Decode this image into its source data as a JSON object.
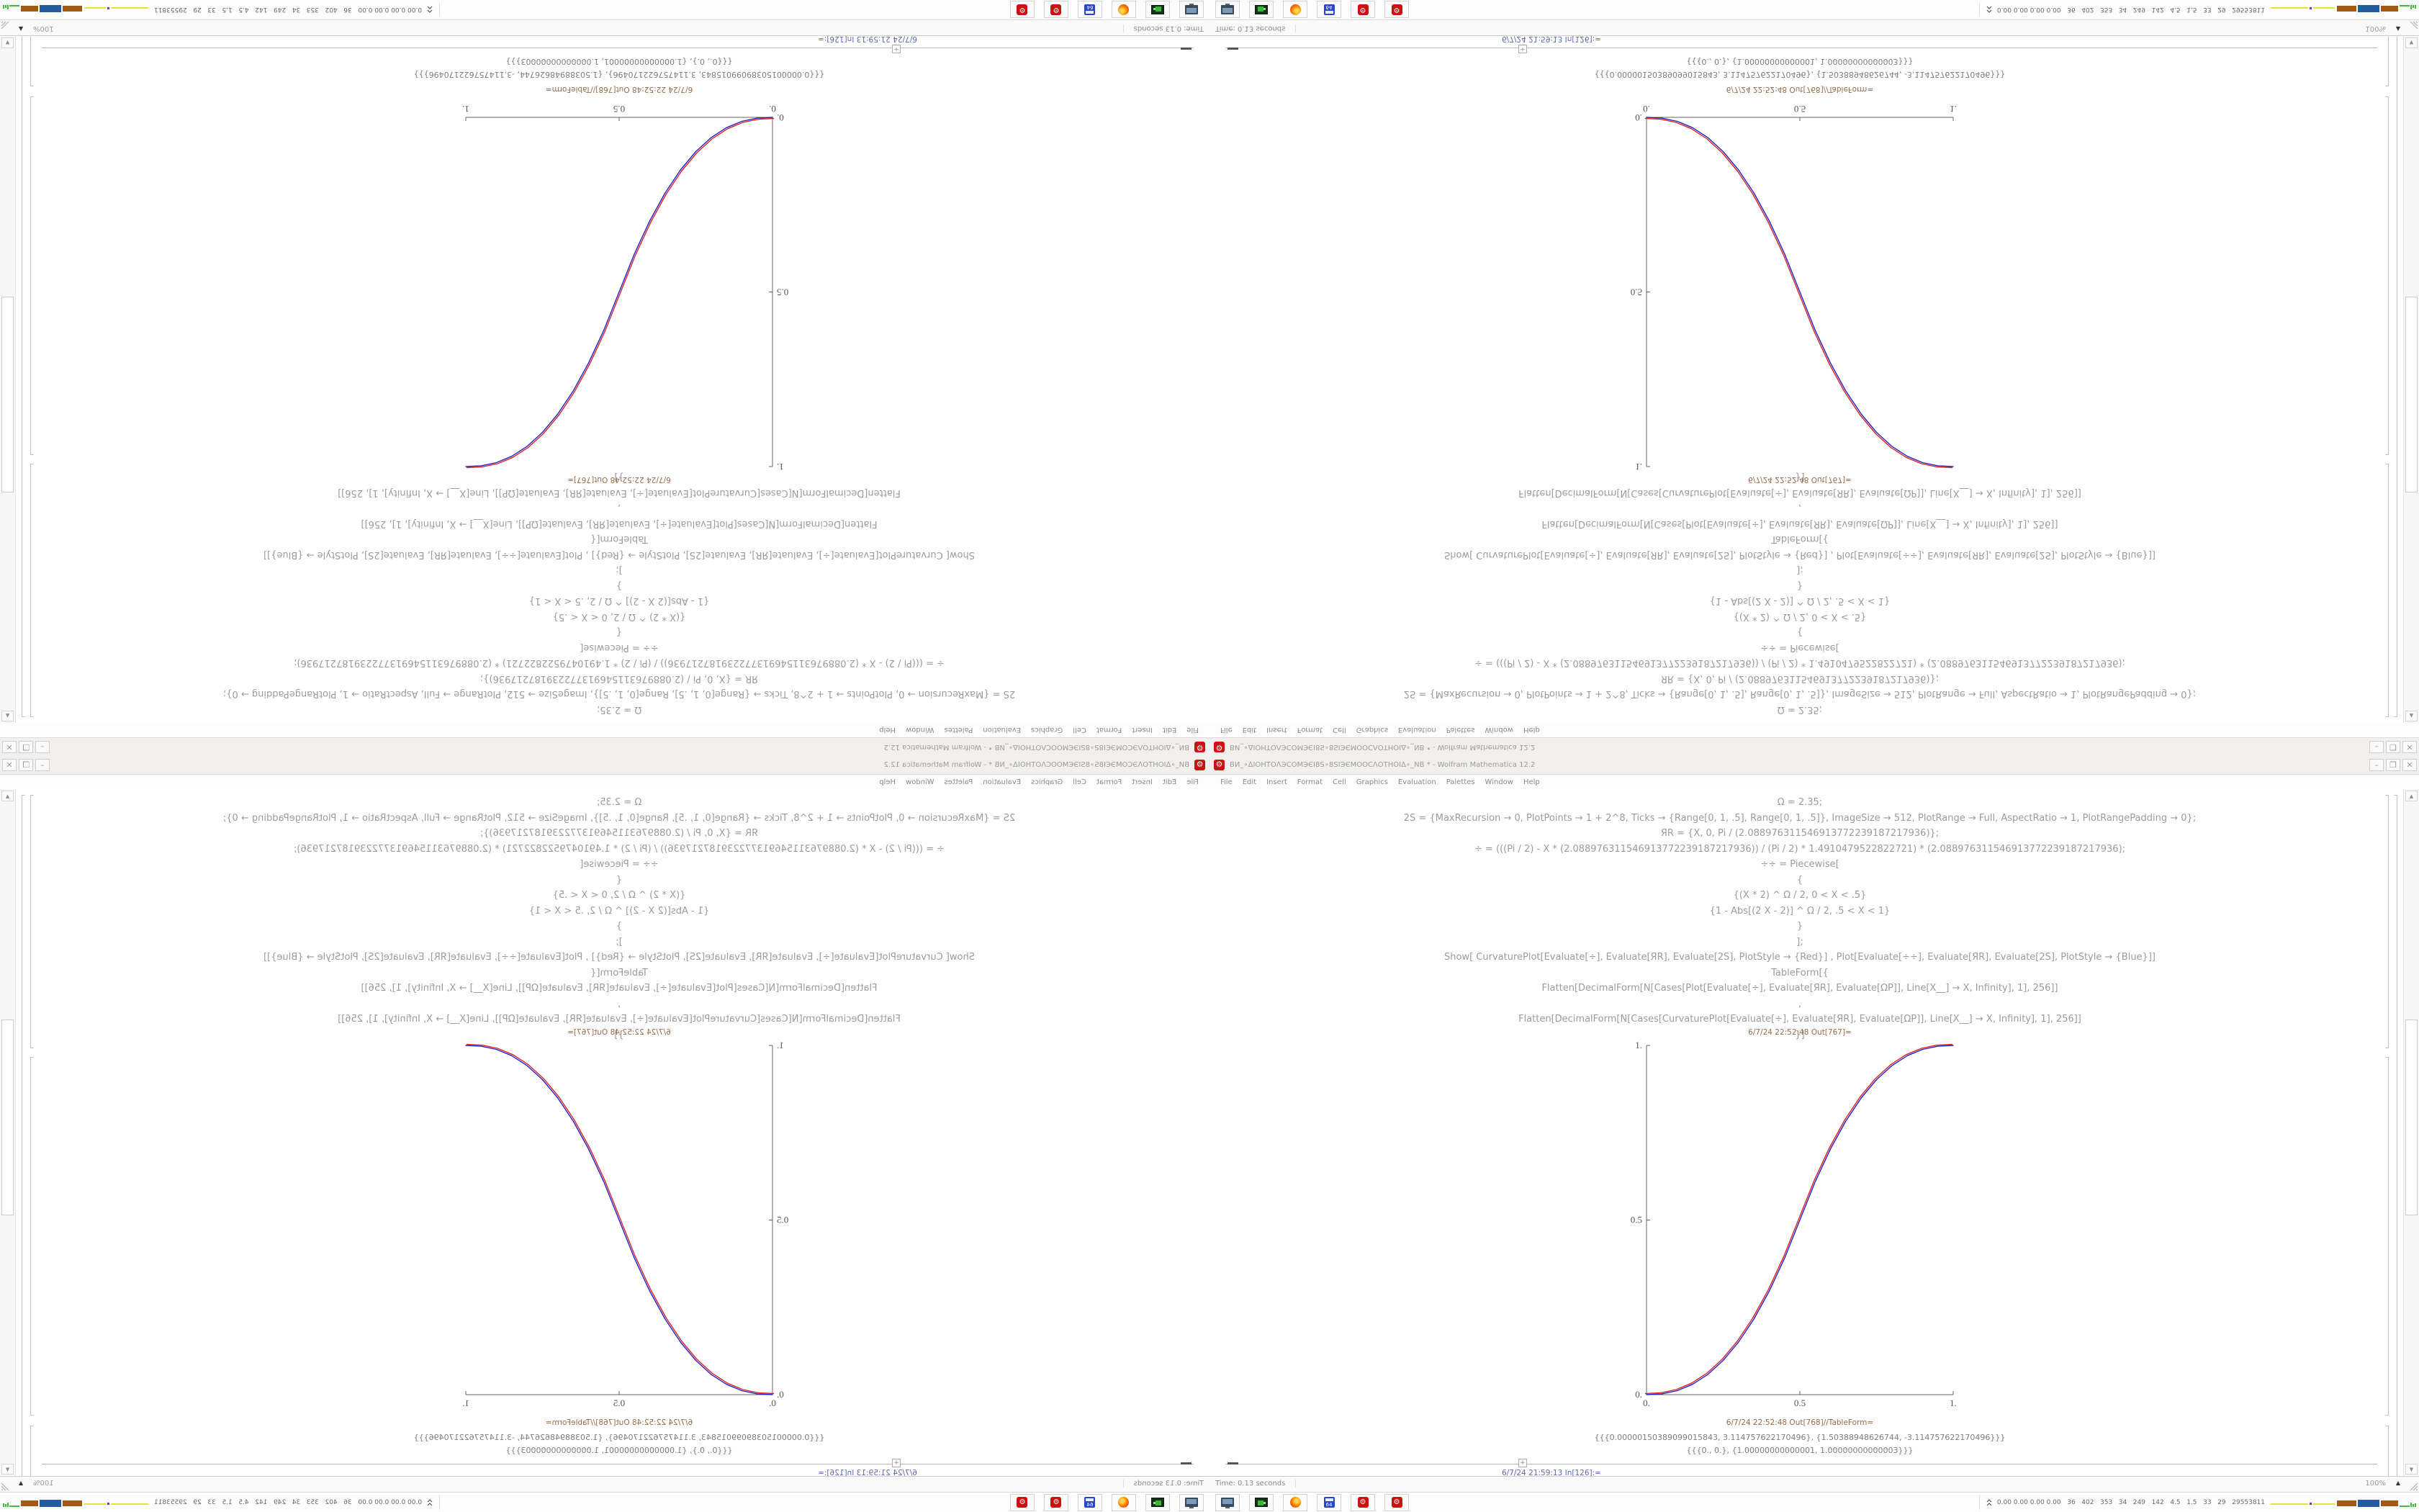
{
  "window": {
    "title": "ВИ_∘ΔIOHTOΛЭCOMЭЄI8S∘8SIЭЄMOOCΛOTHOIΔ∘_NB * - Wolfram Mathematica 12.2",
    "app_icon_glyph": "⚙",
    "window_buttons": {
      "minimize": "–",
      "maximize": "❐",
      "close": "✕"
    },
    "menu": [
      "File",
      "Edit",
      "Insert",
      "Format",
      "Cell",
      "Graphics",
      "Evaluation",
      "Palettes",
      "Window",
      "Help"
    ],
    "input_code_lines": [
      "Ω = 2.35;",
      "2S = {MaxRecursion → 0, PlotPoints → 1 + 2^8, Ticks → {Range[0, 1, .5], Range[0, 1, .5]}, ImageSize → 512, PlotRange → Full, AspectRatio → 1, PlotRangePadding → 0};",
      "ЯR = {X, 0, Pi / (2.088976311546913772239187217936)};",
      "÷ = (((Pi / 2) - X * (2.088976311546913772239187217936)) / (Pi / 2) * 1.4910479522822721) * (2.088976311546913772239187217936);",
      "÷÷ = Piecewise[",
      "{",
      "{(X * 2) ^ Ω / 2, 0 < X < .5}",
      "{1 - Abs[(2 X - 2)] ^ Ω / 2, .5 < X < 1}",
      "}",
      "];",
      "Show[ CurvaturePlot[Evaluate[÷], Evaluate[ЯR], Evaluate[2S], PlotStyle → {Red}] , Plot[Evaluate[÷÷], Evaluate[ЯR], Evaluate[2S], PlotStyle → {Blue}]]",
      "TableForm[{",
      "Flatten[DecimalForm[N[Cases[Plot[Evaluate[÷], Evaluate[ЯR], Evaluate[ΩP]], Line[X__] → X, Infinity], 1], 256]]",
      ",",
      "Flatten[DecimalForm[N[Cases[CurvaturePlot[Evaluate[÷], Evaluate[ЯR], Evaluate[ΩP]], Line[X__] → X, Infinity], 1], 256]]",
      "}]"
    ],
    "out_plot_label": "6/7/24 22:52:48 Out[767]=",
    "out_table_label": "6/7/24 22:52:48 Out[768]//TableForm=",
    "table_rows": [
      "{{{0.00000150389099015843, 3.114757622170496}, {1.50388948626744, -3.114757622170496}}}",
      "{{{0., 0.}, {1.00000000000001, 1.00000000000003}}}"
    ],
    "insert_plus_label": "+",
    "next_in_label": "6/7/24 21:59:13 In[126]:=",
    "status": {
      "left": "Time: 0.13 seconds",
      "zoom": "100%",
      "zoom_arrow": "▲"
    },
    "scrollbar": {
      "up": "▲",
      "down": "▼"
    },
    "taskbar": {
      "app_64_label": "64",
      "mathematica_glyph": "⚙",
      "tray_text": "0.00 0.00 0.00 0.00   36   402   353   34   249   142   4.5   1.5   33   29   29553811",
      "tray_bars": [
        {
          "color": "#e6e03a",
          "x": 0,
          "y": 8,
          "w": 52,
          "h": 2
        },
        {
          "color": "#8a2bb0",
          "x": 54,
          "y": 7,
          "w": 3,
          "h": 3
        },
        {
          "color": "#e6e03a",
          "x": 59,
          "y": 8,
          "w": 30,
          "h": 2
        },
        {
          "color": "#a05a14",
          "x": 92,
          "y": 4,
          "w": 27,
          "h": 8
        },
        {
          "color": "#245a9e",
          "x": 121,
          "y": 3,
          "w": 30,
          "h": 10
        },
        {
          "color": "#a05a14",
          "x": 153,
          "y": 4,
          "w": 24,
          "h": 8
        },
        {
          "color": "#3dbd3d",
          "x": 179,
          "y": 11,
          "w": 14,
          "h": 2
        },
        {
          "color": "#3dbd3d",
          "x": 194,
          "y": 7,
          "w": 2,
          "h": 6
        },
        {
          "color": "#3dbd3d",
          "x": 197,
          "y": 9,
          "w": 2,
          "h": 4
        },
        {
          "color": "#3dbd3d",
          "x": 200,
          "y": 8,
          "w": 2,
          "h": 5
        }
      ]
    }
  },
  "layout_note": "Single 1680x1050 desktop screenshot tiled 2x2: bottom-right original, bottom-left mirrored horizontally, top-left rotated 180deg, top-right flipped vertically",
  "colors": {
    "accent_red": "#cc1111",
    "curve_red": "#dd2222",
    "curve_blue": "#2222cc",
    "out_label": "#9a6a4a",
    "in_label": "#5e68b8",
    "chrome_bg": "#f1f0ef",
    "axis": "#666666"
  },
  "chart_data": {
    "type": "line",
    "title": "",
    "xlabel": "",
    "ylabel": "",
    "xlim": [
      0,
      1
    ],
    "ylim": [
      0,
      1
    ],
    "grid": false,
    "legend": "none",
    "axes": "left-bottom",
    "xticks": [
      0,
      0.5,
      1
    ],
    "yticks": [
      0,
      0.5,
      1
    ],
    "xtick_labels": [
      "0.",
      "0.5",
      "1."
    ],
    "ytick_labels": [
      "0.",
      "0.5",
      "1."
    ],
    "x": [
      0,
      0.05,
      0.1,
      0.15,
      0.2,
      0.25,
      0.3,
      0.35,
      0.4,
      0.45,
      0.5,
      0.55,
      0.6,
      0.65,
      0.7,
      0.75,
      0.8,
      0.85,
      0.9,
      0.95,
      1
    ],
    "series": [
      {
        "name": "CurvaturePlot (Red)",
        "color": "#dd2222",
        "values": [
          0,
          0.0022,
          0.0114,
          0.0295,
          0.058,
          0.098,
          0.1505,
          0.2162,
          0.296,
          0.3903,
          0.5,
          0.6097,
          0.704,
          0.7838,
          0.8495,
          0.902,
          0.942,
          0.9705,
          0.9886,
          0.9978,
          1
        ]
      },
      {
        "name": "Plot (Blue)",
        "color": "#2222cc",
        "values": [
          0,
          0.0022,
          0.0114,
          0.0295,
          0.058,
          0.098,
          0.1505,
          0.2162,
          0.296,
          0.3903,
          0.5,
          0.6097,
          0.704,
          0.7838,
          0.8495,
          0.902,
          0.942,
          0.9705,
          0.9886,
          0.9978,
          1
        ]
      }
    ]
  }
}
